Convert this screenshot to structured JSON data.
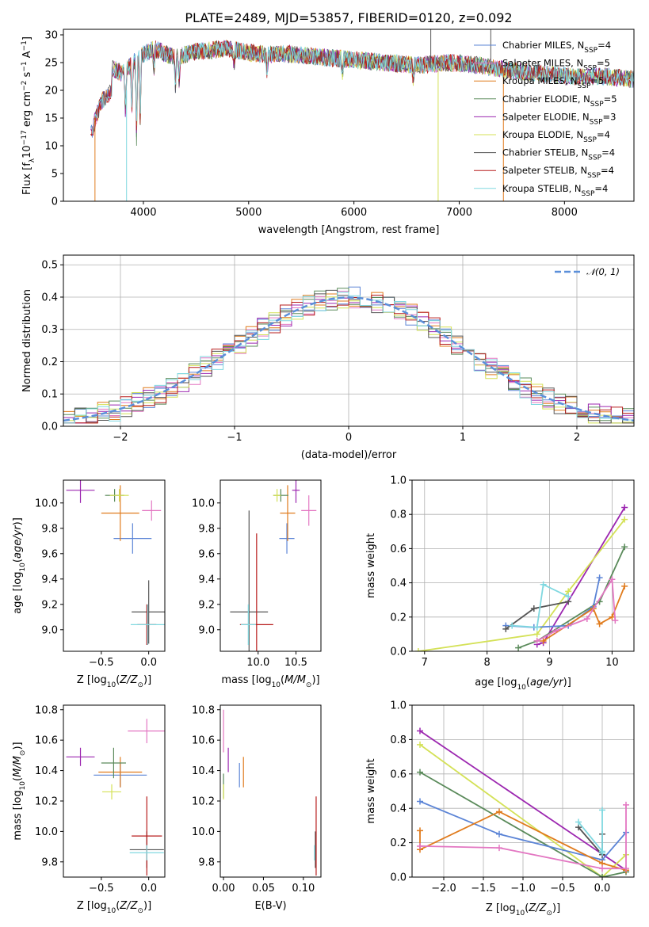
{
  "chart_data": [
    {
      "id": "spectrum",
      "type": "line",
      "title": "PLATE=2489, MJD=53857, FIBERID=0120, z=0.092",
      "xlabel": "wavelength [Angstrom, rest frame]",
      "ylabel": "Flux [f_λ10^{-17} erg cm^{-2} s^{-1} A^{-1}]",
      "xlim": [
        3240,
        8660
      ],
      "ylim": [
        0,
        31
      ],
      "xticks": [
        "4000",
        "5000",
        "6000",
        "7000",
        "8000"
      ],
      "yticks": [
        "0",
        "5",
        "10",
        "15",
        "20",
        "25",
        "30"
      ],
      "grid": false,
      "legend_position": "top-right",
      "legend": [
        {
          "label": "Chabrier MILES, N_SSP=4",
          "color": "#5b84d6"
        },
        {
          "label": "Salpeter MILES, N_SSP=5",
          "color": "#e377c2"
        },
        {
          "label": "Kroupa MILES, N_SSP=5",
          "color": "#e07b1d"
        },
        {
          "label": "Chabrier ELODIE, N_SSP=5",
          "color": "#5a8a5a"
        },
        {
          "label": "Salpeter ELODIE, N_SSP=3",
          "color": "#9c27b0"
        },
        {
          "label": "Kroupa ELODIE, N_SSP=4",
          "color": "#d4e157"
        },
        {
          "label": "Chabrier STELIB, N_SSP=4",
          "color": "#555555"
        },
        {
          "label": "Salpeter STELIB, N_SSP=4",
          "color": "#b71c1c"
        },
        {
          "label": "Kroupa STELIB, N_SSP=4",
          "color": "#80d8e0"
        }
      ],
      "series_note_points": {
        "x": [
          3500,
          3600,
          3700,
          3800,
          3900,
          4000,
          4100,
          4300,
          4500,
          4800,
          5100,
          5400,
          5700,
          6000,
          6300,
          6600,
          6900,
          7200,
          7500,
          7800,
          8100,
          8400,
          8650
        ],
        "y": [
          16,
          22,
          24,
          23,
          25,
          26.5,
          27.5,
          26,
          27,
          27.5,
          26.5,
          26.5,
          26,
          25.5,
          25,
          24.5,
          25,
          24.5,
          23.5,
          23,
          22.5,
          22.5,
          22
        ]
      }
    },
    {
      "id": "residuals",
      "type": "line",
      "xlabel": "(data-model)/error",
      "ylabel": "Normed distribution",
      "xlim": [
        -2.5,
        2.5
      ],
      "ylim": [
        0,
        0.53
      ],
      "xticks": [
        "−2",
        "−1",
        "0",
        "1",
        "2"
      ],
      "yticks": [
        "0.0",
        "0.1",
        "0.2",
        "0.3",
        "0.4",
        "0.5"
      ],
      "grid": true,
      "legend": [
        {
          "label": "𝒩(0, 1)",
          "color": "#5b8fd9"
        }
      ],
      "gaussian": {
        "mean": 0,
        "sigma": 1
      }
    },
    {
      "id": "age-vs-Z",
      "type": "scatter",
      "xlabel": "Z [log10(Z/Z⊙)]",
      "ylabel": "age [log10(age/yr)]",
      "xlim": [
        -0.9,
        0.17
      ],
      "ylim": [
        8.83,
        10.18
      ],
      "xticks": [
        "−0.5",
        "0.0"
      ],
      "yticks": [
        "9.0",
        "9.2",
        "9.4",
        "9.6",
        "9.8",
        "10.0"
      ],
      "points": [
        {
          "x": -0.17,
          "y": 9.72,
          "xerr": 0.2,
          "yerr": 0.12,
          "color": "#5b84d6"
        },
        {
          "x": 0.03,
          "y": 9.94,
          "xerr": 0.1,
          "yerr": 0.08,
          "color": "#e377c2"
        },
        {
          "x": -0.3,
          "y": 9.92,
          "xerr": 0.2,
          "yerr": 0.22,
          "color": "#e07b1d"
        },
        {
          "x": -0.36,
          "y": 10.06,
          "xerr": 0.1,
          "yerr": 0.05,
          "color": "#5a8a5a"
        },
        {
          "x": -0.72,
          "y": 10.1,
          "xerr": 0.15,
          "yerr": 0.1,
          "color": "#9c27b0"
        },
        {
          "x": -0.31,
          "y": 10.06,
          "xerr": 0.1,
          "yerr": 0.05,
          "color": "#d4e157"
        },
        {
          "x": 0.0,
          "y": 9.14,
          "xerr": 0.18,
          "yerr": 0.25,
          "color": "#555555"
        },
        {
          "x": -0.02,
          "y": 9.04,
          "xerr": 0.1,
          "yerr": 0.16,
          "color": "#b71c1c"
        },
        {
          "x": -0.01,
          "y": 9.04,
          "xerr": 0.18,
          "yerr": 0.16,
          "color": "#80d8e0"
        }
      ]
    },
    {
      "id": "age-vs-mass",
      "type": "scatter",
      "xlabel": "mass [log10(M/M⊙)]",
      "ylabel": "",
      "xlim": [
        9.5,
        10.83
      ],
      "ylim": [
        8.83,
        10.18
      ],
      "xticks": [
        "10.0",
        "10.5"
      ],
      "yticks": [
        "9.0",
        "9.2",
        "9.4",
        "9.6",
        "9.8",
        "10.0"
      ],
      "points": [
        {
          "x": 10.38,
          "y": 9.72,
          "xerr": 0.1,
          "yerr": 0.12,
          "color": "#5b84d6"
        },
        {
          "x": 10.67,
          "y": 9.94,
          "xerr": 0.1,
          "yerr": 0.12,
          "color": "#e377c2"
        },
        {
          "x": 10.39,
          "y": 9.92,
          "xerr": 0.1,
          "yerr": 0.22,
          "color": "#e07b1d"
        },
        {
          "x": 10.3,
          "y": 10.06,
          "xerr": 0.1,
          "yerr": 0.05,
          "color": "#5a8a5a"
        },
        {
          "x": 10.5,
          "y": 10.1,
          "xerr": 0.05,
          "yerr": 0.1,
          "color": "#9c27b0"
        },
        {
          "x": 10.25,
          "y": 10.06,
          "xerr": 0.05,
          "yerr": 0.05,
          "color": "#d4e157"
        },
        {
          "x": 9.88,
          "y": 9.14,
          "xerr": 0.25,
          "yerr": 0.8,
          "color": "#555555"
        },
        {
          "x": 9.98,
          "y": 9.04,
          "xerr": 0.22,
          "yerr": 0.72,
          "color": "#b71c1c"
        },
        {
          "x": 9.87,
          "y": 9.04,
          "xerr": 0.1,
          "yerr": 0.16,
          "color": "#80d8e0"
        }
      ]
    },
    {
      "id": "massweight-vs-age",
      "type": "line",
      "xlabel": "age [log10(age/yr)]",
      "ylabel": "mass weight",
      "xlim": [
        6.8,
        10.35
      ],
      "ylim": [
        0,
        1.0
      ],
      "xticks": [
        "7",
        "8",
        "9",
        "10"
      ],
      "yticks": [
        "0.0",
        "0.2",
        "0.4",
        "0.6",
        "0.8",
        "1.0"
      ],
      "grid": true,
      "series": [
        {
          "color": "#9c27b0",
          "x": [
            8.8,
            8.9,
            10.2
          ],
          "y": [
            0.04,
            0.05,
            0.84
          ]
        },
        {
          "color": "#d4e157",
          "x": [
            6.9,
            8.8,
            9.3,
            10.2
          ],
          "y": [
            0.0,
            0.1,
            0.35,
            0.77
          ]
        },
        {
          "color": "#5a8a5a",
          "x": [
            8.5,
            8.8,
            9.8,
            10.2
          ],
          "y": [
            0.02,
            0.06,
            0.29,
            0.61
          ]
        },
        {
          "color": "#5b84d6",
          "x": [
            8.3,
            8.75,
            9.3,
            9.7,
            9.8
          ],
          "y": [
            0.15,
            0.14,
            0.15,
            0.26,
            0.43
          ]
        },
        {
          "color": "#e07b1d",
          "x": [
            8.9,
            9.7,
            9.8,
            10.0,
            10.2
          ],
          "y": [
            0.06,
            0.25,
            0.16,
            0.2,
            0.38
          ]
        },
        {
          "color": "#e377c2",
          "x": [
            8.8,
            9.1,
            9.6,
            10.0,
            10.05
          ],
          "y": [
            0.06,
            0.12,
            0.19,
            0.42,
            0.18
          ]
        },
        {
          "color": "#555555",
          "x": [
            8.3,
            8.75,
            9.3
          ],
          "y": [
            0.13,
            0.25,
            0.29
          ]
        },
        {
          "color": "#80d8e0",
          "x": [
            8.4,
            8.8,
            8.9,
            9.3
          ],
          "y": [
            0.15,
            0.14,
            0.39,
            0.32
          ]
        }
      ]
    },
    {
      "id": "mass-vs-Z",
      "type": "scatter",
      "xlabel": "Z [log10(Z/Z⊙)]",
      "ylabel": "mass [log10(M/M⊙)]",
      "xlim": [
        -0.9,
        0.17
      ],
      "ylim": [
        9.7,
        10.83
      ],
      "xticks": [
        "−0.5",
        "0.0"
      ],
      "yticks": [
        "9.8",
        "10.0",
        "10.2",
        "10.4",
        "10.6",
        "10.8"
      ],
      "points": [
        {
          "x": -0.3,
          "y": 10.37,
          "xerr": 0.28,
          "yerr": 0.08,
          "color": "#5b84d6"
        },
        {
          "x": -0.02,
          "y": 10.66,
          "xerr": 0.2,
          "yerr": 0.08,
          "color": "#e377c2"
        },
        {
          "x": -0.3,
          "y": 10.39,
          "xerr": 0.23,
          "yerr": 0.1,
          "color": "#e07b1d"
        },
        {
          "x": -0.37,
          "y": 10.45,
          "xerr": 0.13,
          "yerr": 0.1,
          "color": "#5a8a5a"
        },
        {
          "x": -0.72,
          "y": 10.49,
          "xerr": 0.15,
          "yerr": 0.06,
          "color": "#9c27b0"
        },
        {
          "x": -0.39,
          "y": 10.26,
          "xerr": 0.1,
          "yerr": 0.05,
          "color": "#d4e157"
        },
        {
          "x": -0.02,
          "y": 9.88,
          "xerr": 0.18,
          "yerr": 0.12,
          "color": "#555555"
        },
        {
          "x": -0.02,
          "y": 9.97,
          "xerr": 0.16,
          "yerr": 0.26,
          "color": "#b71c1c"
        },
        {
          "x": -0.02,
          "y": 9.86,
          "xerr": 0.18,
          "yerr": 0.05,
          "color": "#80d8e0"
        }
      ]
    },
    {
      "id": "mass-vs-EBV",
      "type": "scatter",
      "xlabel": "E(B-V)",
      "ylabel": "",
      "xlim": [
        -0.004,
        0.122
      ],
      "ylim": [
        9.7,
        10.83
      ],
      "xticks": [
        "0.00",
        "0.05",
        "0.10"
      ],
      "yticks": [
        "9.8",
        "10.0",
        "10.2",
        "10.4",
        "10.6",
        "10.8"
      ],
      "points": [
        {
          "x": 0.02,
          "y": 10.37,
          "yerr": 0.08,
          "color": "#5b84d6"
        },
        {
          "x": 0.0,
          "y": 10.66,
          "yerr": 0.14,
          "color": "#e377c2"
        },
        {
          "x": 0.025,
          "y": 10.39,
          "yerr": 0.1,
          "color": "#e07b1d"
        },
        {
          "x": 0.0,
          "y": 10.3,
          "yerr": 0.08,
          "color": "#5a8a5a"
        },
        {
          "x": 0.006,
          "y": 10.47,
          "yerr": 0.08,
          "color": "#9c27b0"
        },
        {
          "x": 0.0,
          "y": 10.26,
          "yerr": 0.05,
          "color": "#d4e157"
        },
        {
          "x": 0.115,
          "y": 9.88,
          "yerr": 0.12,
          "color": "#555555"
        },
        {
          "x": 0.116,
          "y": 9.97,
          "yerr": 0.26,
          "color": "#b71c1c"
        },
        {
          "x": 0.114,
          "y": 9.86,
          "yerr": 0.05,
          "color": "#80d8e0"
        }
      ]
    },
    {
      "id": "massweight-vs-Z",
      "type": "line",
      "xlabel": "Z [log10(Z/Z⊙)]",
      "ylabel": "mass weight",
      "xlim": [
        -2.4,
        0.4
      ],
      "ylim": [
        0,
        1.0
      ],
      "xticks": [
        "−2.0",
        "−1.5",
        "−1.0",
        "−0.5",
        "0.0"
      ],
      "yticks": [
        "0.0",
        "0.2",
        "0.4",
        "0.6",
        "0.8",
        "1.0"
      ],
      "grid": true,
      "series": [
        {
          "color": "#9c27b0",
          "x": [
            -2.3,
            0.3
          ],
          "y": [
            0.85,
            0.04
          ]
        },
        {
          "color": "#d4e157",
          "x": [
            -2.3,
            0.0,
            0.3
          ],
          "y": [
            0.77,
            0.0,
            0.13
          ]
        },
        {
          "color": "#5a8a5a",
          "x": [
            -2.3,
            0.0,
            0.3
          ],
          "y": [
            0.61,
            0.0,
            0.03
          ]
        },
        {
          "color": "#5b84d6",
          "x": [
            -2.3,
            -1.3,
            0.0,
            0.3
          ],
          "y": [
            0.44,
            0.25,
            0.1,
            0.26
          ]
        },
        {
          "color": "#e07b1d",
          "x": [
            -2.3,
            -2.3,
            -1.3,
            0.0,
            0.3
          ],
          "y": [
            0.27,
            0.16,
            0.38,
            0.08,
            0.04
          ]
        },
        {
          "color": "#e377c2",
          "x": [
            -2.3,
            -1.3,
            0.0,
            0.3,
            0.3
          ],
          "y": [
            0.18,
            0.17,
            0.05,
            0.05,
            0.42
          ]
        },
        {
          "color": "#555555",
          "x": [
            -0.3,
            0.0,
            0.0
          ],
          "y": [
            0.29,
            0.13,
            0.25
          ]
        },
        {
          "color": "#80d8e0",
          "x": [
            -0.3,
            0.0,
            0.0,
            0.0
          ],
          "y": [
            0.32,
            0.15,
            0.39,
            0.14
          ]
        }
      ]
    }
  ]
}
